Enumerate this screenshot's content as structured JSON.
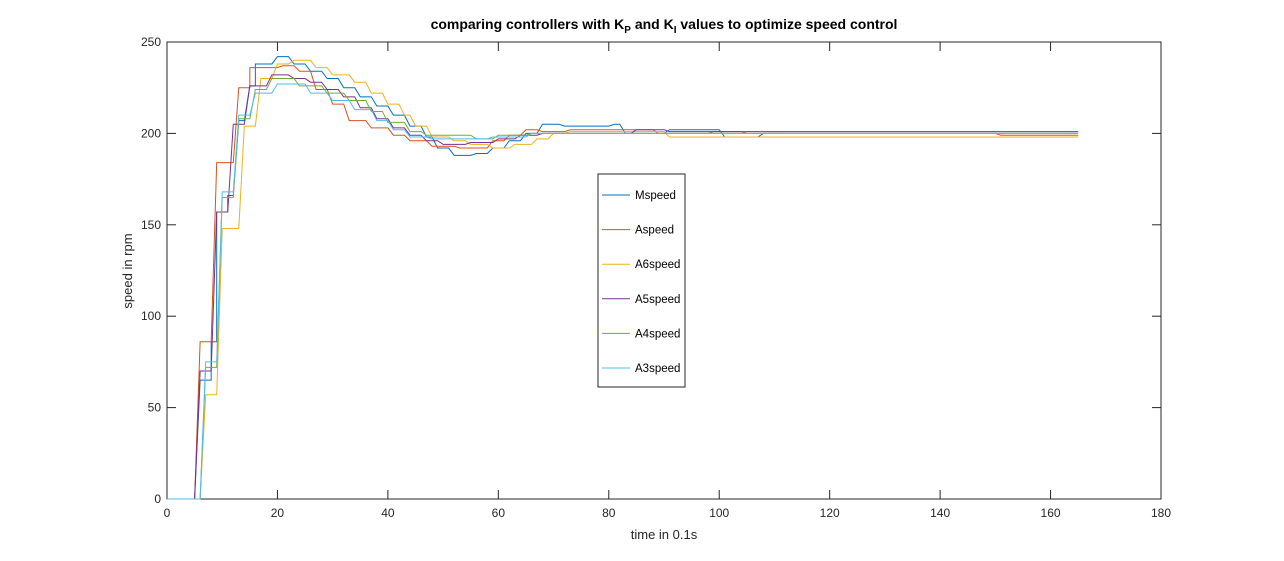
{
  "chart_data": {
    "type": "line",
    "title": {
      "prefix": "comparing controllers with K",
      "sub1": "P",
      "mid": " and K",
      "sub2": "I",
      "suffix": " values to optimize speed control"
    },
    "xlabel": "time in 0.1s",
    "ylabel": "speed in rpm",
    "xlim": [
      0,
      180
    ],
    "ylim": [
      0,
      250
    ],
    "xticks": [
      0,
      20,
      40,
      60,
      80,
      100,
      120,
      140,
      160,
      180
    ],
    "yticks": [
      0,
      50,
      100,
      150,
      200,
      250
    ],
    "grid": false,
    "legend_position": "center",
    "series": [
      {
        "name": "Mspeed",
        "color": "#0072BD",
        "points": [
          [
            0,
            0
          ],
          [
            5,
            0
          ],
          [
            6,
            65
          ],
          [
            8,
            65
          ],
          [
            8,
            86
          ],
          [
            9,
            86
          ],
          [
            9,
            157
          ],
          [
            11,
            157
          ],
          [
            11,
            166
          ],
          [
            12,
            166
          ],
          [
            13,
            207
          ],
          [
            14,
            207
          ],
          [
            15,
            226
          ],
          [
            16,
            226
          ],
          [
            16,
            238
          ],
          [
            19,
            238
          ],
          [
            20,
            242
          ],
          [
            22,
            242
          ],
          [
            23,
            238
          ],
          [
            25,
            238
          ],
          [
            26,
            234
          ],
          [
            28,
            234
          ],
          [
            29,
            230
          ],
          [
            31,
            230
          ],
          [
            32,
            225
          ],
          [
            34,
            225
          ],
          [
            35,
            220
          ],
          [
            37,
            220
          ],
          [
            38,
            215
          ],
          [
            40,
            215
          ],
          [
            41,
            210
          ],
          [
            43,
            210
          ],
          [
            44,
            204
          ],
          [
            46,
            204
          ],
          [
            47,
            198
          ],
          [
            48,
            198
          ],
          [
            49,
            192
          ],
          [
            51,
            192
          ],
          [
            52,
            188
          ],
          [
            55,
            188
          ],
          [
            56,
            189
          ],
          [
            58,
            189
          ],
          [
            59,
            192
          ],
          [
            61,
            192
          ],
          [
            62,
            196
          ],
          [
            64,
            196
          ],
          [
            65,
            200
          ],
          [
            67,
            200
          ],
          [
            68,
            205
          ],
          [
            71,
            205
          ],
          [
            72,
            204
          ],
          [
            80,
            204
          ],
          [
            81,
            205
          ],
          [
            82,
            205
          ],
          [
            83,
            200
          ],
          [
            90,
            200
          ],
          [
            91,
            202
          ],
          [
            100,
            202
          ],
          [
            101,
            198
          ],
          [
            107,
            198
          ],
          [
            108,
            200
          ],
          [
            165,
            200
          ]
        ]
      },
      {
        "name": "Aspeed",
        "color": "#D95319",
        "points": [
          [
            0,
            0
          ],
          [
            5,
            0
          ],
          [
            6,
            86
          ],
          [
            8,
            86
          ],
          [
            9,
            184
          ],
          [
            12,
            184
          ],
          [
            13,
            225
          ],
          [
            15,
            225
          ],
          [
            15,
            236
          ],
          [
            20,
            236
          ],
          [
            21,
            237
          ],
          [
            23,
            237
          ],
          [
            24,
            234
          ],
          [
            26,
            234
          ],
          [
            27,
            224
          ],
          [
            29,
            224
          ],
          [
            30,
            216
          ],
          [
            32,
            216
          ],
          [
            33,
            207
          ],
          [
            36,
            207
          ],
          [
            37,
            203
          ],
          [
            40,
            203
          ],
          [
            41,
            199
          ],
          [
            43,
            199
          ],
          [
            44,
            196
          ],
          [
            47,
            196
          ],
          [
            48,
            193
          ],
          [
            52,
            193
          ],
          [
            53,
            192
          ],
          [
            58,
            192
          ],
          [
            59,
            196
          ],
          [
            61,
            196
          ],
          [
            62,
            199
          ],
          [
            64,
            199
          ],
          [
            65,
            202
          ],
          [
            67,
            202
          ],
          [
            68,
            201
          ],
          [
            72,
            201
          ],
          [
            73,
            202
          ],
          [
            88,
            202
          ],
          [
            89,
            200
          ],
          [
            98,
            200
          ],
          [
            99,
            201
          ],
          [
            104,
            201
          ],
          [
            105,
            200
          ],
          [
            150,
            200
          ],
          [
            151,
            199
          ],
          [
            165,
            199
          ]
        ]
      },
      {
        "name": "A6speed",
        "color": "#EDB120",
        "points": [
          [
            0,
            0
          ],
          [
            6,
            0
          ],
          [
            7,
            57
          ],
          [
            9,
            57
          ],
          [
            10,
            148
          ],
          [
            13,
            148
          ],
          [
            14,
            204
          ],
          [
            16,
            204
          ],
          [
            17,
            230
          ],
          [
            19,
            230
          ],
          [
            20,
            238
          ],
          [
            22,
            238
          ],
          [
            23,
            240
          ],
          [
            26,
            240
          ],
          [
            27,
            236
          ],
          [
            29,
            236
          ],
          [
            30,
            232
          ],
          [
            33,
            232
          ],
          [
            34,
            228
          ],
          [
            36,
            228
          ],
          [
            37,
            222
          ],
          [
            39,
            222
          ],
          [
            40,
            216
          ],
          [
            42,
            216
          ],
          [
            43,
            210
          ],
          [
            44,
            210
          ],
          [
            45,
            204
          ],
          [
            47,
            204
          ],
          [
            48,
            198
          ],
          [
            51,
            198
          ],
          [
            52,
            196
          ],
          [
            54,
            196
          ],
          [
            55,
            194
          ],
          [
            58,
            194
          ],
          [
            59,
            192
          ],
          [
            62,
            192
          ],
          [
            63,
            194
          ],
          [
            66,
            194
          ],
          [
            67,
            197
          ],
          [
            69,
            197
          ],
          [
            70,
            200
          ],
          [
            72,
            200
          ],
          [
            73,
            201
          ],
          [
            90,
            201
          ],
          [
            91,
            198
          ],
          [
            165,
            198
          ]
        ]
      },
      {
        "name": "A5speed",
        "color": "#7E2F8E",
        "points": [
          [
            0,
            0
          ],
          [
            5,
            0
          ],
          [
            6,
            70
          ],
          [
            8,
            70
          ],
          [
            9,
            157
          ],
          [
            11,
            157
          ],
          [
            12,
            205
          ],
          [
            14,
            205
          ],
          [
            15,
            226
          ],
          [
            18,
            226
          ],
          [
            19,
            232
          ],
          [
            22,
            232
          ],
          [
            23,
            230
          ],
          [
            25,
            230
          ],
          [
            26,
            228
          ],
          [
            28,
            228
          ],
          [
            29,
            224
          ],
          [
            31,
            224
          ],
          [
            32,
            220
          ],
          [
            34,
            220
          ],
          [
            35,
            214
          ],
          [
            37,
            214
          ],
          [
            38,
            208
          ],
          [
            40,
            208
          ],
          [
            41,
            203
          ],
          [
            43,
            203
          ],
          [
            44,
            199
          ],
          [
            46,
            199
          ],
          [
            47,
            196
          ],
          [
            49,
            196
          ],
          [
            50,
            194
          ],
          [
            54,
            194
          ],
          [
            55,
            195
          ],
          [
            59,
            195
          ],
          [
            60,
            197
          ],
          [
            63,
            197
          ],
          [
            64,
            199
          ],
          [
            67,
            199
          ],
          [
            68,
            200
          ],
          [
            84,
            200
          ],
          [
            85,
            202
          ],
          [
            90,
            202
          ],
          [
            91,
            201
          ],
          [
            165,
            201
          ]
        ]
      },
      {
        "name": "A4speed",
        "color": "#77AC30",
        "points": [
          [
            0,
            0
          ],
          [
            6,
            0
          ],
          [
            7,
            72
          ],
          [
            9,
            72
          ],
          [
            10,
            165
          ],
          [
            12,
            165
          ],
          [
            13,
            208
          ],
          [
            15,
            208
          ],
          [
            16,
            224
          ],
          [
            18,
            224
          ],
          [
            19,
            230
          ],
          [
            23,
            230
          ],
          [
            24,
            226
          ],
          [
            28,
            226
          ],
          [
            29,
            222
          ],
          [
            32,
            222
          ],
          [
            33,
            218
          ],
          [
            36,
            218
          ],
          [
            37,
            212
          ],
          [
            39,
            212
          ],
          [
            40,
            206
          ],
          [
            43,
            206
          ],
          [
            44,
            201
          ],
          [
            46,
            201
          ],
          [
            47,
            199
          ],
          [
            55,
            199
          ],
          [
            56,
            197
          ],
          [
            59,
            197
          ],
          [
            60,
            199
          ],
          [
            65,
            199
          ],
          [
            66,
            200
          ],
          [
            165,
            200
          ]
        ]
      },
      {
        "name": "A3speed",
        "color": "#4DBEEE",
        "points": [
          [
            0,
            0
          ],
          [
            6,
            0
          ],
          [
            7,
            75
          ],
          [
            9,
            75
          ],
          [
            10,
            168
          ],
          [
            12,
            168
          ],
          [
            13,
            210
          ],
          [
            15,
            210
          ],
          [
            16,
            222
          ],
          [
            19,
            222
          ],
          [
            20,
            227
          ],
          [
            25,
            227
          ],
          [
            26,
            222
          ],
          [
            29,
            222
          ],
          [
            30,
            218
          ],
          [
            33,
            218
          ],
          [
            34,
            213
          ],
          [
            37,
            213
          ],
          [
            38,
            207
          ],
          [
            40,
            207
          ],
          [
            41,
            202
          ],
          [
            43,
            202
          ],
          [
            44,
            198
          ],
          [
            47,
            198
          ],
          [
            48,
            197
          ],
          [
            58,
            197
          ],
          [
            59,
            198
          ],
          [
            65,
            198
          ],
          [
            66,
            200
          ],
          [
            165,
            200
          ]
        ]
      }
    ]
  }
}
